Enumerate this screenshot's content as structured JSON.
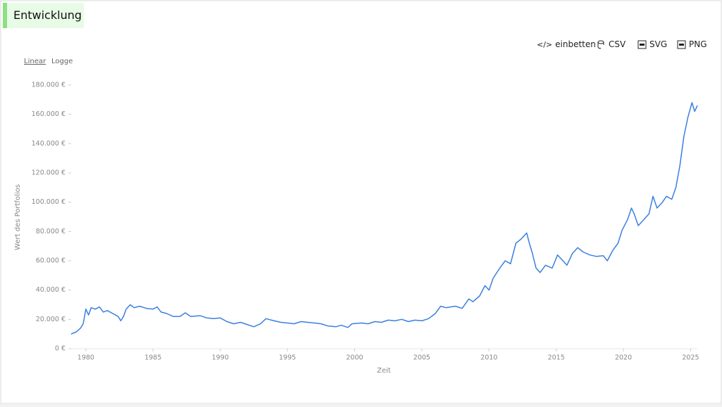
{
  "header": {
    "title": "Entwicklung"
  },
  "toolbar": [
    "einbetten",
    "CSV",
    "SVG",
    "PNG"
  ],
  "scale_toggle": [
    "Linear",
    "Logge"
  ],
  "chart_data": {
    "type": "line",
    "x_label": "Zeit",
    "y_label": "Wert des Portfolios",
    "color": "#3b7fe0",
    "x": [
      1978.9,
      1979.3,
      1979.6,
      1979.8,
      1980.0,
      1980.2,
      1980.4,
      1980.7,
      1981.0,
      1981.3,
      1981.6,
      1982.0,
      1982.4,
      1982.6,
      1982.8,
      1983.0,
      1983.3,
      1983.6,
      1984.0,
      1984.5,
      1985.0,
      1985.3,
      1985.6,
      1986.0,
      1986.5,
      1987.0,
      1987.4,
      1987.8,
      1988.5,
      1989.0,
      1989.5,
      1990.0,
      1990.5,
      1991.0,
      1991.5,
      1992.0,
      1992.5,
      1993.0,
      1993.4,
      1993.8,
      1994.5,
      1995.0,
      1995.5,
      1996.0,
      1996.5,
      1997.0,
      1997.5,
      1998.0,
      1998.6,
      1999.0,
      1999.5,
      1999.8,
      2000.5,
      2001.0,
      2001.5,
      2002.0,
      2002.5,
      2003.0,
      2003.5,
      2004.0,
      2004.5,
      2005.0,
      2005.5,
      2006.0,
      2006.4,
      2006.8,
      2007.5,
      2008.0,
      2008.5,
      2008.8,
      2009.3,
      2009.7,
      2010.0,
      2010.3,
      2010.8,
      2011.2,
      2011.6,
      2012.0,
      2012.4,
      2012.8,
      2013.0,
      2013.2,
      2013.5,
      2013.8,
      2014.2,
      2014.7,
      2015.1,
      2015.5,
      2015.8,
      2016.2,
      2016.6,
      2017.0,
      2017.5,
      2018.0,
      2018.5,
      2018.8,
      2019.2,
      2019.6,
      2019.9,
      2020.3,
      2020.6,
      2020.8,
      2021.1,
      2021.5,
      2021.9,
      2022.2,
      2022.5,
      2022.9,
      2023.2,
      2023.6,
      2023.9,
      2024.2,
      2024.5,
      2024.8,
      2025.1,
      2025.3,
      2025.5
    ],
    "values": [
      10000,
      11500,
      14000,
      17000,
      27000,
      23000,
      28000,
      27000,
      28500,
      25000,
      26000,
      24000,
      22000,
      19000,
      22000,
      27000,
      30000,
      28000,
      29000,
      27500,
      27000,
      28500,
      25000,
      24000,
      22000,
      22000,
      24500,
      22000,
      22500,
      21000,
      20500,
      21000,
      18500,
      17000,
      18000,
      16500,
      15000,
      17000,
      20500,
      19500,
      18000,
      17500,
      17000,
      18500,
      18000,
      17500,
      17000,
      15500,
      15000,
      16000,
      14500,
      17000,
      17500,
      17000,
      18500,
      18000,
      19500,
      19000,
      20000,
      18500,
      19500,
      19000,
      20500,
      24000,
      29000,
      28000,
      29000,
      27500,
      34000,
      32000,
      36000,
      43000,
      40000,
      48000,
      55000,
      60000,
      58000,
      72000,
      75000,
      79000,
      72000,
      66000,
      55000,
      52000,
      57000,
      55000,
      64000,
      60000,
      57000,
      65000,
      69000,
      66000,
      64000,
      63000,
      63500,
      60000,
      67000,
      72000,
      81000,
      88000,
      96000,
      92000,
      84000,
      88000,
      92000,
      104000,
      96000,
      100000,
      104000,
      102000,
      110000,
      125000,
      145000,
      158000,
      168000,
      162000,
      166000
    ],
    "xlim": [
      1978.8,
      2025.5
    ],
    "xticks": [
      1980,
      1985,
      1990,
      1995,
      2000,
      2005,
      2010,
      2015,
      2020,
      2025
    ],
    "ylim": [
      0,
      180000
    ],
    "yticks": [
      {
        "value": 0,
        "label": "0 €"
      },
      {
        "value": 20000,
        "label": "20.000 €"
      },
      {
        "value": 40000,
        "label": "40.000 €"
      },
      {
        "value": 60000,
        "label": "60.000 €"
      },
      {
        "value": 80000,
        "label": "80.000 €"
      },
      {
        "value": 100000,
        "label": "100.000 €"
      },
      {
        "value": 120000,
        "label": "120.000 €"
      },
      {
        "value": 140000,
        "label": "140.000 €"
      },
      {
        "value": 160000,
        "label": "160.000 €"
      },
      {
        "value": 180000,
        "label": "180.000 €"
      }
    ]
  }
}
